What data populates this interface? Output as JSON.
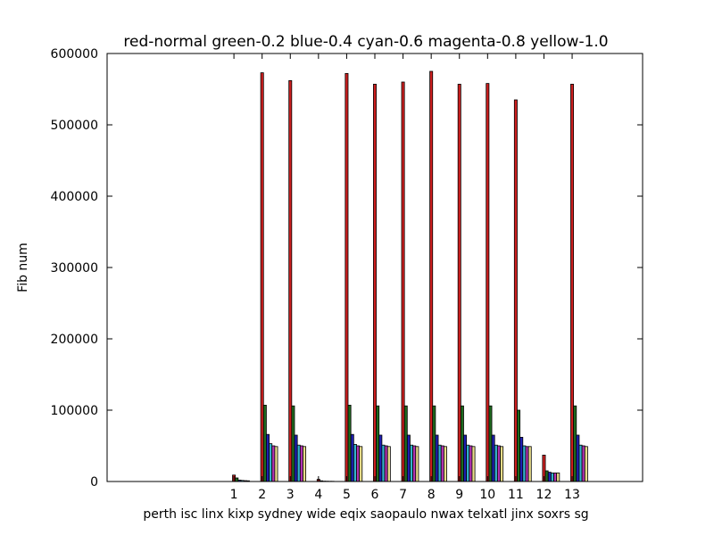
{
  "chart_data": {
    "type": "bar",
    "title": "red-normal  green-0.2 blue-0.4 cyan-0.6 magenta-0.8 yellow-1.0",
    "xlabel": "perth isc linx kixp sydney wide eqix saopaulo nwax telxatl jinx soxrs sg",
    "ylabel": "Fib num",
    "categories": [
      "1",
      "2",
      "3",
      "4",
      "5",
      "6",
      "7",
      "8",
      "9",
      "10",
      "11",
      "12",
      "13"
    ],
    "x_positions": [
      1,
      2,
      3,
      4,
      5,
      6,
      7,
      8,
      9,
      10,
      11,
      12,
      13
    ],
    "xlim": [
      -3.5,
      15.5
    ],
    "ylim": [
      0,
      600000
    ],
    "yticks": [
      0,
      100000,
      200000,
      300000,
      400000,
      500000,
      600000
    ],
    "ytick_labels": [
      "0",
      "100000",
      "200000",
      "300000",
      "400000",
      "500000",
      "600000"
    ],
    "grid": false,
    "colors": {
      "red": "#cc1f1f",
      "green": "#1f6b1f",
      "blue": "#1f1fb3",
      "cyan": "#33b3cc",
      "magenta": "#b333b3",
      "yellow": "#e8dd8a"
    },
    "series": [
      {
        "color": "red",
        "values": [
          9000,
          573000,
          562000,
          3000,
          572000,
          557000,
          560000,
          575000,
          557000,
          558000,
          535000,
          37000,
          557000
        ]
      },
      {
        "color": "green",
        "values": [
          5000,
          107000,
          106000,
          1000,
          107000,
          106000,
          106000,
          106000,
          106000,
          106000,
          100000,
          15000,
          106000
        ]
      },
      {
        "color": "blue",
        "values": [
          2000,
          66000,
          65000,
          500,
          66000,
          65000,
          65000,
          65000,
          65000,
          65000,
          62000,
          13000,
          65000
        ]
      },
      {
        "color": "cyan",
        "values": [
          1500,
          53000,
          51000,
          400,
          52000,
          51000,
          51000,
          51000,
          51000,
          51000,
          50000,
          12000,
          51000
        ]
      },
      {
        "color": "magenta",
        "values": [
          1200,
          50000,
          50000,
          300,
          50000,
          50000,
          50000,
          50000,
          50000,
          50000,
          49000,
          12000,
          50000
        ]
      },
      {
        "color": "yellow",
        "values": [
          1000,
          49000,
          49000,
          300,
          49000,
          49000,
          49000,
          49000,
          49000,
          49000,
          49000,
          12000,
          49000
        ]
      }
    ]
  }
}
